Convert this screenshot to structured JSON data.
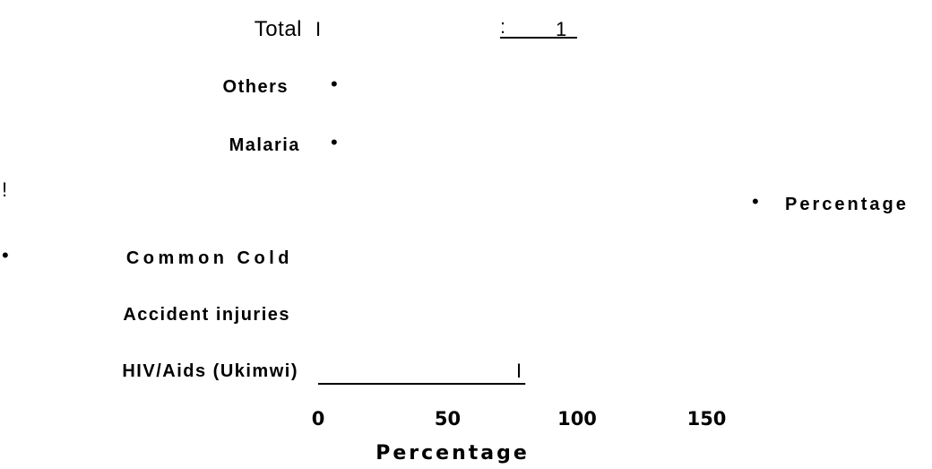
{
  "chart_data": {
    "type": "bar",
    "orientation": "horizontal",
    "categories": [
      "Total",
      "Others",
      "Malaria",
      "Common Cold",
      "Accident injuries",
      "HIV/Aids (Ukimwi)"
    ],
    "series": [
      {
        "name": "Percentage",
        "values": [
          100,
          null,
          null,
          null,
          null,
          80
        ]
      }
    ],
    "xlabel": "Percentage",
    "xticks": [
      0,
      50,
      100,
      150
    ],
    "xlim": [
      0,
      150
    ],
    "legend_placement": "right",
    "grid": false,
    "annotations": {
      "total_colon": ":",
      "total_value_text": "1",
      "total_start_mark": "I",
      "exclamation": "!",
      "series_bullet": "•",
      "hiv_bar_end_mark": "I"
    }
  },
  "colors": {
    "text": "#000000",
    "bar_line": "#000000",
    "background": "#ffffff"
  }
}
